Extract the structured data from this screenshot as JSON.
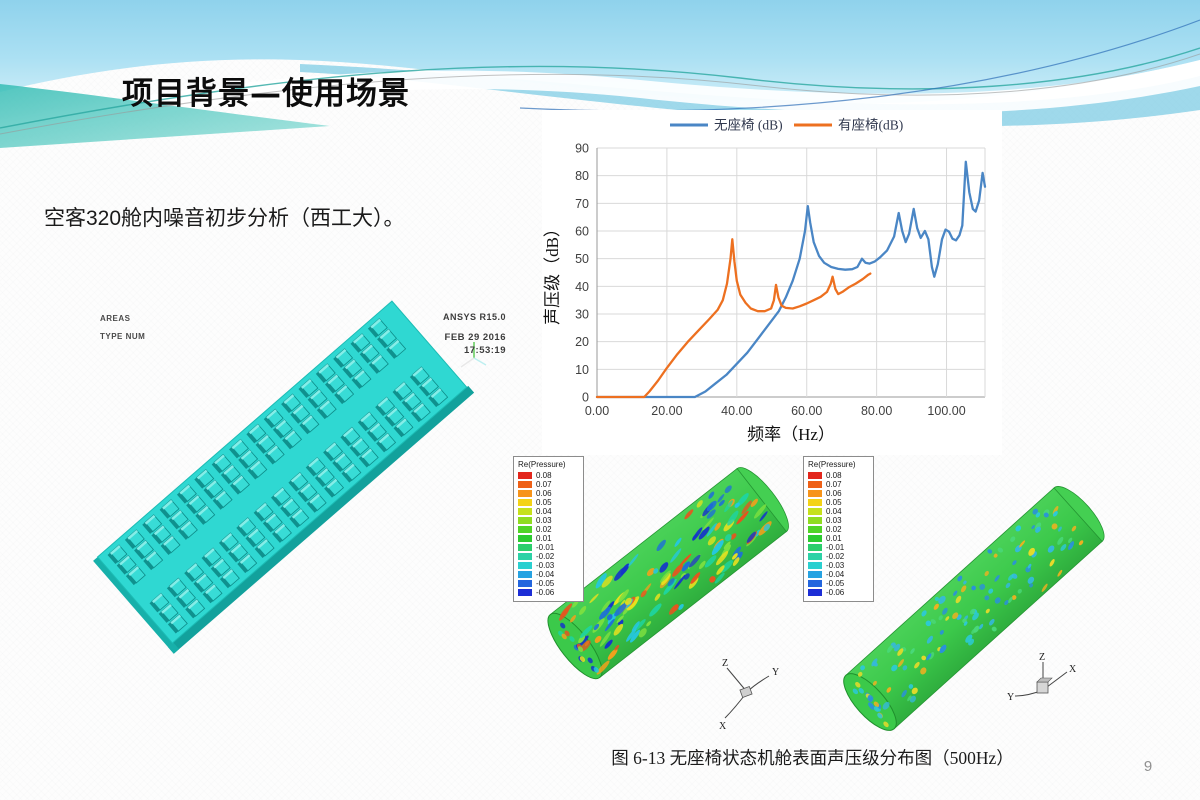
{
  "slide": {
    "title": "项目背景—使用场景",
    "body_text": "空客320舱内噪音初步分析（西工大）。",
    "caption": "图 6-13  无座椅状态机舱表面声压级分布图（500Hz）",
    "page_number": "9"
  },
  "cabin_figure": {
    "label_top_left_1": "AREAS",
    "label_top_left_2": "TYPE NUM",
    "label_top_right_1": "ANSYS R15.0",
    "label_top_right_2": "FEB 29 2016",
    "label_top_right_3": "17:53:19"
  },
  "chart_data": {
    "type": "line",
    "title": "",
    "xlabel": "频率（Hz）",
    "ylabel": "声压级（dB）",
    "xlim": [
      0,
      111
    ],
    "ylim": [
      0,
      90
    ],
    "grid": true,
    "legend_position": "top",
    "x_ticks": [
      {
        "value": 0,
        "label": "0.00"
      },
      {
        "value": 20,
        "label": "20.00"
      },
      {
        "value": 40,
        "label": "40.00"
      },
      {
        "value": 60,
        "label": "60.00"
      },
      {
        "value": 80,
        "label": "80.00"
      },
      {
        "value": 100,
        "label": "100.00"
      }
    ],
    "y_ticks": [
      0,
      10,
      20,
      30,
      40,
      50,
      60,
      70,
      80,
      90
    ],
    "series": [
      {
        "name": "无座椅 (dB)",
        "color": "#4a86c5",
        "points": [
          [
            0,
            0
          ],
          [
            28,
            0
          ],
          [
            31,
            2
          ],
          [
            34,
            5
          ],
          [
            37,
            8
          ],
          [
            40,
            12
          ],
          [
            43,
            16
          ],
          [
            46,
            21
          ],
          [
            49,
            26
          ],
          [
            52,
            31
          ],
          [
            54,
            36
          ],
          [
            56,
            42
          ],
          [
            58,
            50
          ],
          [
            59.5,
            60
          ],
          [
            60.3,
            69
          ],
          [
            61,
            63
          ],
          [
            62,
            56
          ],
          [
            63.5,
            51
          ],
          [
            65,
            48.5
          ],
          [
            67,
            47
          ],
          [
            69,
            46.3
          ],
          [
            71,
            46
          ],
          [
            73,
            46.2
          ],
          [
            74.5,
            47
          ],
          [
            75.8,
            50
          ],
          [
            76.8,
            48.5
          ],
          [
            78,
            48.2
          ],
          [
            79.5,
            49
          ],
          [
            81,
            50.5
          ],
          [
            83,
            53
          ],
          [
            85,
            58
          ],
          [
            86.3,
            66.5
          ],
          [
            87.3,
            60
          ],
          [
            88.3,
            56
          ],
          [
            89.3,
            59
          ],
          [
            90.6,
            68
          ],
          [
            91.6,
            61
          ],
          [
            92.6,
            57.5
          ],
          [
            93.8,
            60
          ],
          [
            94.8,
            57
          ],
          [
            95.8,
            47
          ],
          [
            96.5,
            43.5
          ],
          [
            97.5,
            48
          ],
          [
            98.7,
            57
          ],
          [
            99.7,
            60.5
          ],
          [
            100.7,
            59.8
          ],
          [
            101.7,
            57.2
          ],
          [
            102.7,
            56.6
          ],
          [
            103.7,
            58.5
          ],
          [
            104.5,
            62
          ],
          [
            105.5,
            85
          ],
          [
            106.5,
            74
          ],
          [
            107.5,
            68
          ],
          [
            108.3,
            67
          ],
          [
            109.3,
            71
          ],
          [
            110.3,
            81
          ],
          [
            111,
            76
          ]
        ]
      },
      {
        "name": "有座椅(dB)",
        "color": "#ed7020",
        "points": [
          [
            0,
            0
          ],
          [
            13.5,
            0
          ],
          [
            15,
            2
          ],
          [
            17.5,
            6
          ],
          [
            20,
            10.5
          ],
          [
            23,
            15.5
          ],
          [
            26,
            20
          ],
          [
            29,
            24
          ],
          [
            32,
            28
          ],
          [
            34.5,
            31.5
          ],
          [
            36,
            35
          ],
          [
            37.2,
            41
          ],
          [
            38.2,
            50
          ],
          [
            38.7,
            57
          ],
          [
            39.3,
            49
          ],
          [
            40,
            42
          ],
          [
            41,
            37
          ],
          [
            42.5,
            34
          ],
          [
            44,
            32
          ],
          [
            46,
            31
          ],
          [
            48,
            31
          ],
          [
            49.8,
            32
          ],
          [
            50.6,
            35
          ],
          [
            51.2,
            40.5
          ],
          [
            51.9,
            36
          ],
          [
            52.8,
            33
          ],
          [
            54,
            32.2
          ],
          [
            56,
            32
          ],
          [
            58,
            32.8
          ],
          [
            60,
            33.8
          ],
          [
            62,
            35
          ],
          [
            64,
            36.2
          ],
          [
            65.8,
            38
          ],
          [
            66.9,
            41
          ],
          [
            67.4,
            43.5
          ],
          [
            68.2,
            39
          ],
          [
            69,
            37.2
          ],
          [
            70.2,
            38
          ],
          [
            72,
            39.6
          ],
          [
            74,
            41
          ],
          [
            76,
            42.6
          ],
          [
            77.6,
            44.2
          ],
          [
            78.2,
            44.6
          ]
        ]
      }
    ]
  },
  "pressure_plots": {
    "legend_title": "Re(Pressure)",
    "levels": [
      {
        "label": "0.08",
        "color": "#e3261c"
      },
      {
        "label": "0.07",
        "color": "#ef6016"
      },
      {
        "label": "0.06",
        "color": "#f7941a"
      },
      {
        "label": "0.05",
        "color": "#f4d316"
      },
      {
        "label": "0.04",
        "color": "#c6e11a"
      },
      {
        "label": "0.03",
        "color": "#8fdc1f"
      },
      {
        "label": "0.02",
        "color": "#50d426"
      },
      {
        "label": "0.01",
        "color": "#2bcb2f"
      },
      {
        "label": "-0.01",
        "color": "#2bce6c"
      },
      {
        "label": "-0.02",
        "color": "#2cd2a6"
      },
      {
        "label": "-0.03",
        "color": "#2bd0d0"
      },
      {
        "label": "-0.04",
        "color": "#27a3e2"
      },
      {
        "label": "-0.05",
        "color": "#2366de"
      },
      {
        "label": "-0.06",
        "color": "#1d2ed6"
      }
    ],
    "triad": {
      "z": "Z",
      "y": "Y",
      "x": "X"
    }
  },
  "theme": {
    "header_blue": "#8fd2ec",
    "header_teal": "#35bdb5",
    "cabin_cyan": "#2fd8d2",
    "cylinder_green": "#3cc94b"
  }
}
